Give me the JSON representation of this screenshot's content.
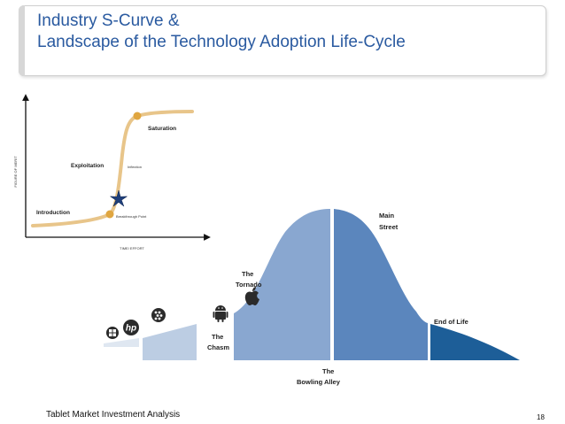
{
  "slide": {
    "title_line1": "Industry S-Curve &",
    "title_line2": "Landscape of the Technology Adoption Life-Cycle",
    "footer": "Tablet Market Investment Analysis",
    "page_number": "18"
  },
  "s_curve": {
    "y_axis_label": "FIGURE OF MERIT",
    "x_axis_label": "TIME/ EFFORT",
    "stages": {
      "introduction": "Introduction",
      "exploitation": "Exploitation",
      "saturation": "Saturation"
    },
    "points": {
      "inflection": "Inflection",
      "breakthrough": "Breakthrough Point"
    }
  },
  "adoption": {
    "main_street_line1": "Main",
    "main_street_line2": "Street",
    "tornado_line1": "The",
    "tornado_line2": "Tornado",
    "chasm_line1": "The",
    "chasm_line2": "Chasm",
    "end_of_life": "End of Life",
    "bowling_line1": "The",
    "bowling_line2": "Bowling Alley",
    "hp_text": "hp"
  },
  "colors": {
    "title": "#2a5aa0",
    "curve": "#e8c58a",
    "dot": "#e0a640",
    "star": "#1f3f7a",
    "bell_light": "#89a7d0",
    "bell_mid": "#5b86bd",
    "bell_dark": "#1d5e98",
    "block_lightest": "#dfe7f1",
    "block_light": "#bccde3"
  }
}
